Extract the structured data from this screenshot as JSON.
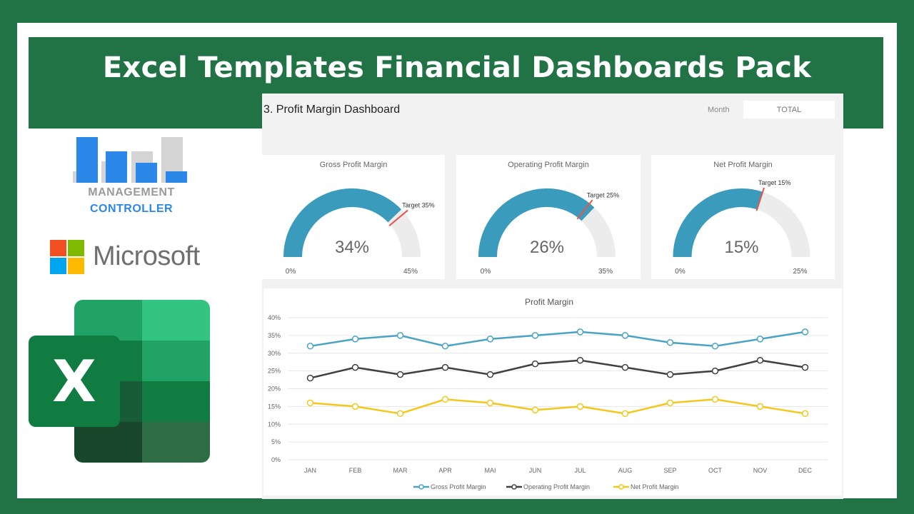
{
  "banner": {
    "title": "Excel Templates Financial Dashboards Pack"
  },
  "management_logo": {
    "line1": "MANAGEMENT",
    "line2": "CONTROLLER"
  },
  "microsoft_logo": {
    "text": "Microsoft"
  },
  "excel_logo": {
    "letter": "X"
  },
  "dashboard": {
    "title": "3. Profit Margin Dashboard",
    "month_label": "Month",
    "month_value": "TOTAL"
  },
  "gauges": [
    {
      "title": "Gross Profit Margin",
      "value": 34,
      "value_label": "34%",
      "min_label": "0%",
      "max": 45,
      "max_label": "45%",
      "target": 35,
      "target_label": "Target 35%"
    },
    {
      "title": "Operating Profit Margin",
      "value": 26,
      "value_label": "26%",
      "min_label": "0%",
      "max": 35,
      "max_label": "35%",
      "target": 25,
      "target_label": "Target 25%"
    },
    {
      "title": "Net Profit Margin",
      "value": 15,
      "value_label": "15%",
      "min_label": "0%",
      "max": 25,
      "max_label": "25%",
      "target": 15,
      "target_label": "Target 15%"
    }
  ],
  "colors": {
    "gauge_fill": "#3a9bbd",
    "gauge_track": "#ececec",
    "target_marker": "#e8534a",
    "gross": "#4aa3c2",
    "operating": "#404040",
    "net": "#f2c81c"
  },
  "chart_data": {
    "type": "line",
    "title": "Profit Margin",
    "categories": [
      "JAN",
      "FEB",
      "MAR",
      "APR",
      "MAI",
      "JUN",
      "JUL",
      "AUG",
      "SEP",
      "OCT",
      "NOV",
      "DEC"
    ],
    "series": [
      {
        "name": "Gross Profit Margin",
        "values": [
          32,
          34,
          35,
          32,
          34,
          35,
          36,
          35,
          33,
          32,
          34,
          36
        ]
      },
      {
        "name": "Operating Profit Margin",
        "values": [
          23,
          26,
          24,
          26,
          24,
          27,
          28,
          26,
          24,
          25,
          28,
          26
        ]
      },
      {
        "name": "Net Profit Margin",
        "values": [
          16,
          15,
          13,
          17,
          16,
          14,
          15,
          13,
          16,
          17,
          15,
          13
        ]
      }
    ],
    "yticks": [
      "0%",
      "5%",
      "10%",
      "15%",
      "20%",
      "25%",
      "30%",
      "35%",
      "40%"
    ],
    "ylim": [
      0,
      40
    ],
    "grid": true,
    "legend": "bottom"
  }
}
